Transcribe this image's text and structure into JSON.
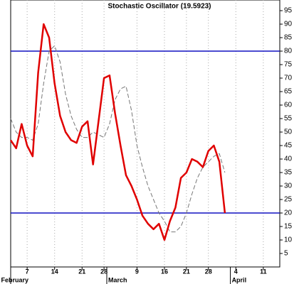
{
  "chart_data": {
    "type": "line",
    "title": "Stochastic Oscillator (19.5923)",
    "x": [
      0,
      1,
      2,
      3,
      4,
      5,
      6,
      7,
      8,
      9,
      10,
      11,
      12,
      13,
      14,
      15,
      16,
      17,
      18,
      19,
      20,
      21,
      22,
      23,
      24,
      25,
      26,
      27,
      28,
      29,
      30,
      31,
      32,
      33,
      34,
      35,
      36,
      37,
      38,
      39
    ],
    "series": [
      {
        "color": "#e00000",
        "values": [
          47,
          44,
          53,
          45,
          41,
          72,
          90,
          85,
          68,
          56,
          50,
          47,
          46,
          52,
          54,
          38,
          54,
          70,
          71,
          57,
          45,
          34,
          30,
          25,
          19,
          16,
          14,
          16,
          10,
          17,
          22,
          33,
          35,
          40,
          39,
          37,
          43,
          45,
          39,
          20
        ]
      },
      {
        "color": "#777777",
        "dashed": true,
        "values": [
          55,
          50,
          48,
          48,
          47,
          53,
          68,
          80,
          82,
          76,
          64,
          56,
          51,
          48,
          48,
          50,
          49,
          48,
          53,
          62,
          66,
          67,
          58,
          45,
          37,
          30,
          25,
          20,
          17,
          13,
          13,
          15,
          20,
          27,
          33,
          37,
          39,
          41,
          42,
          35
        ]
      }
    ],
    "hlines": [
      80,
      20
    ],
    "hline_color": "#1010c0",
    "xlim": [
      0,
      49
    ],
    "ylim": [
      0,
      100
    ],
    "xticks": [
      {
        "value": 3,
        "label": "7"
      },
      {
        "value": 8,
        "label": "14"
      },
      {
        "value": 13,
        "label": "21"
      },
      {
        "value": 17,
        "label": "28"
      },
      {
        "value": 23,
        "label": "9"
      },
      {
        "value": 28,
        "label": "16"
      },
      {
        "value": 32,
        "label": "21"
      },
      {
        "value": 36,
        "label": "28"
      },
      {
        "value": 41,
        "label": "4"
      },
      {
        "value": 46,
        "label": "11"
      }
    ],
    "months": [
      {
        "value": 0,
        "label": "February"
      },
      {
        "value": 17.5,
        "label": "March"
      },
      {
        "value": 40,
        "label": "April"
      }
    ],
    "yticks": [
      5,
      10,
      15,
      20,
      25,
      30,
      35,
      40,
      45,
      50,
      55,
      60,
      65,
      70,
      75,
      80,
      85,
      90,
      95
    ],
    "grid": true
  }
}
